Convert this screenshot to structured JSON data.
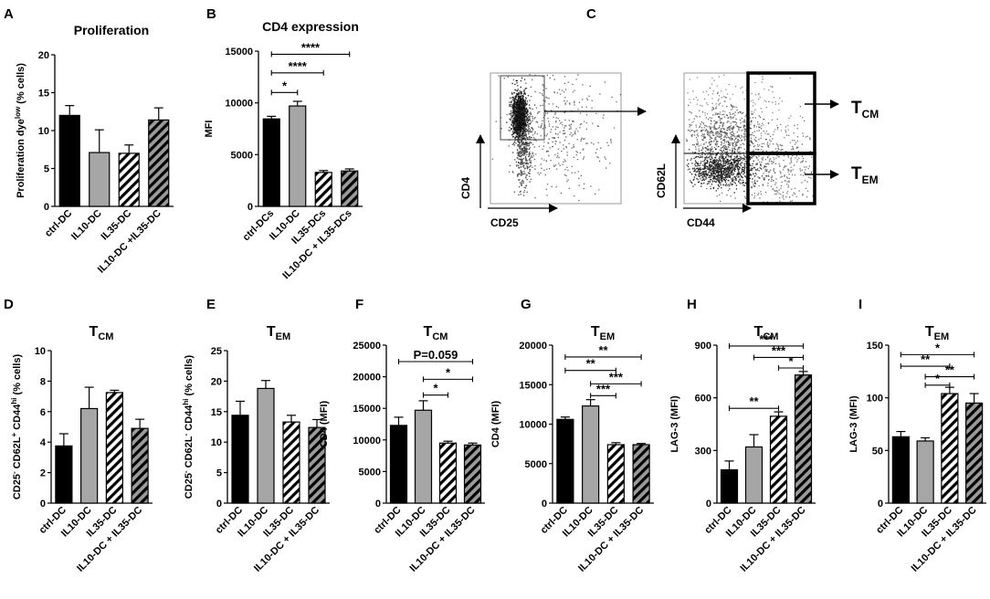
{
  "figure": {
    "panel_c": {
      "label": "C",
      "plot1": {
        "y_label": "CD4",
        "x_label": "CD25"
      },
      "plot2": {
        "y_label": "CD62L",
        "x_label": "CD44"
      },
      "tcm": {
        "main": "T",
        "sub": "CM"
      },
      "tem": {
        "main": "T",
        "sub": "EM"
      }
    }
  },
  "chart_data": [
    {
      "panel": "A",
      "type": "bar",
      "title": "Proliferation",
      "ylabel_main": "Proliferation dye",
      "ylabel_sup": "low",
      "ylabel_tail": " (% cells)",
      "categories": [
        "ctrl-DC",
        "IL10-DC",
        "IL35-DC",
        "IL10-DC +IL35-DC"
      ],
      "values": [
        12,
        7.1,
        7,
        11.4
      ],
      "errors": [
        1.3,
        3,
        1.1,
        1.6
      ],
      "fills": [
        "solid-black",
        "solid-gray",
        "hatch-white",
        "hatch-gray"
      ],
      "ylim": [
        0,
        20
      ],
      "yticks": [
        0,
        5,
        10,
        15,
        20
      ],
      "significance": []
    },
    {
      "panel": "B",
      "type": "bar",
      "title": "CD4 expression",
      "ylabel_main": "MFI",
      "categories": [
        "ctrl-DCs",
        "IL10-DC",
        "IL35-DCs",
        "IL10-DC + IL35-DCs"
      ],
      "values": [
        8450,
        9700,
        3280,
        3420
      ],
      "errors": [
        250,
        450,
        180,
        200
      ],
      "fills": [
        "solid-black",
        "solid-gray",
        "hatch-white",
        "hatch-gray"
      ],
      "ylim": [
        0,
        15000
      ],
      "yticks": [
        0,
        5000,
        10000,
        15000
      ],
      "significance": [
        {
          "from": 0,
          "to": 1,
          "level": 11000,
          "label": "*"
        },
        {
          "from": 0,
          "to": 2,
          "level": 12900,
          "label": "****"
        },
        {
          "from": 0,
          "to": 3,
          "level": 14700,
          "label": "****"
        }
      ]
    },
    {
      "panel": "D",
      "type": "bar",
      "title_main": "T",
      "title_sub": "CM",
      "ylabel_parts": [
        {
          "t": "CD25",
          "s": ""
        },
        {
          "t": "-",
          "s": "sup"
        },
        {
          "t": " CD62L",
          "s": ""
        },
        {
          "t": "+",
          "s": "sup"
        },
        {
          "t": " CD44",
          "s": ""
        },
        {
          "t": "hi",
          "s": "sup"
        },
        {
          "t": " (% cells)",
          "s": ""
        }
      ],
      "categories": [
        "ctrl-DC",
        "IL10-DC",
        "IL35-DC",
        "IL10-DC + IL35-DC"
      ],
      "values": [
        3.75,
        6.2,
        7.25,
        4.9
      ],
      "errors": [
        0.8,
        1.4,
        0.15,
        0.6
      ],
      "fills": [
        "solid-black",
        "solid-gray",
        "hatch-white",
        "hatch-gray"
      ],
      "ylim": [
        0,
        10
      ],
      "yticks": [
        0,
        2,
        4,
        6,
        8,
        10
      ],
      "significance": []
    },
    {
      "panel": "E",
      "type": "bar",
      "title_main": "T",
      "title_sub": "EM",
      "ylabel_parts": [
        {
          "t": "CD25",
          "s": ""
        },
        {
          "t": "-",
          "s": "sup"
        },
        {
          "t": " CD62L",
          "s": ""
        },
        {
          "t": "-",
          "s": "sup"
        },
        {
          "t": " CD44",
          "s": ""
        },
        {
          "t": "hi",
          "s": "sup"
        },
        {
          "t": " (% cells)",
          "s": ""
        }
      ],
      "categories": [
        "ctrl-DC",
        "IL10-DC",
        "IL35-DC",
        "IL10-DC + IL35-DC"
      ],
      "values": [
        14.4,
        18.8,
        13.3,
        12.4
      ],
      "errors": [
        2.3,
        1.3,
        1.1,
        1.3
      ],
      "fills": [
        "solid-black",
        "solid-gray",
        "hatch-white",
        "hatch-gray"
      ],
      "ylim": [
        0,
        25
      ],
      "yticks": [
        0,
        5,
        10,
        15,
        20,
        25
      ],
      "significance": []
    },
    {
      "panel": "F",
      "type": "bar",
      "title_main": "T",
      "title_sub": "CM",
      "ylabel_main": "CD4 (MFI)",
      "categories": [
        "ctrl-DC",
        "IL10-DC",
        "IL35-DC",
        "IL10-DC + IL35-DC"
      ],
      "values": [
        12300,
        14700,
        9500,
        9200
      ],
      "errors": [
        1300,
        1500,
        300,
        300
      ],
      "fills": [
        "solid-black",
        "solid-gray",
        "hatch-white",
        "hatch-gray"
      ],
      "ylim": [
        0,
        25000
      ],
      "yticks": [
        0,
        5000,
        10000,
        15000,
        20000,
        25000
      ],
      "significance": [
        {
          "from": 2,
          "to": 1,
          "level": 17100,
          "label": "*"
        },
        {
          "from": 3,
          "to": 1,
          "level": 19600,
          "label": "*"
        },
        {
          "from": 0,
          "to": 3,
          "level": 22400,
          "label": "P=0.059"
        }
      ]
    },
    {
      "panel": "G",
      "type": "bar",
      "title_main": "T",
      "title_sub": "EM",
      "ylabel_main": "CD4 (MFI)",
      "categories": [
        "ctrl-DC",
        "IL10-DC",
        "IL35-DC",
        "IL10-DC + IL35-DC"
      ],
      "values": [
        10600,
        12300,
        7400,
        7400
      ],
      "errors": [
        300,
        800,
        250,
        150
      ],
      "fills": [
        "solid-black",
        "solid-gray",
        "hatch-white",
        "hatch-gray"
      ],
      "ylim": [
        0,
        20000
      ],
      "yticks": [
        0,
        5000,
        10000,
        15000,
        20000
      ],
      "significance": [
        {
          "from": 1,
          "to": 2,
          "level": 13600,
          "label": "***"
        },
        {
          "from": 1,
          "to": 3,
          "level": 15100,
          "label": "***"
        },
        {
          "from": 0,
          "to": 2,
          "level": 16800,
          "label": "**"
        },
        {
          "from": 0,
          "to": 3,
          "level": 18500,
          "label": "**"
        }
      ]
    },
    {
      "panel": "H",
      "type": "bar",
      "title_main": "T",
      "title_sub": "CM",
      "ylabel_main": "LAG-3 (MFI)",
      "categories": [
        "ctrl-DC",
        "IL10-DC",
        "IL35-DC",
        "IL10-DC + IL35-DC"
      ],
      "values": [
        190,
        320,
        495,
        730
      ],
      "errors": [
        50,
        70,
        25,
        20
      ],
      "fills": [
        "solid-black",
        "solid-gray",
        "hatch-white",
        "hatch-gray"
      ],
      "ylim": [
        0,
        900
      ],
      "yticks": [
        0,
        300,
        600,
        900
      ],
      "significance": [
        {
          "from": 0,
          "to": 2,
          "level": 540,
          "label": "**"
        },
        {
          "from": 2,
          "to": 3,
          "level": 770,
          "label": "*"
        },
        {
          "from": 1,
          "to": 3,
          "level": 830,
          "label": "***"
        },
        {
          "from": 0,
          "to": 3,
          "level": 895,
          "label": "***"
        }
      ]
    },
    {
      "panel": "I",
      "type": "bar",
      "title_main": "T",
      "title_sub": "EM",
      "ylabel_main": "LAG-3 (MFI)",
      "categories": [
        "ctrl-DC",
        "IL10-DC",
        "IL35-DC",
        "IL10-DC + IL35-DC"
      ],
      "values": [
        63,
        59,
        104,
        95
      ],
      "errors": [
        5,
        3,
        6,
        9
      ],
      "fills": [
        "solid-black",
        "solid-gray",
        "hatch-white",
        "hatch-gray"
      ],
      "ylim": [
        0,
        150
      ],
      "yticks": [
        0,
        50,
        100,
        150
      ],
      "significance": [
        {
          "from": 1,
          "to": 2,
          "level": 112,
          "label": "*"
        },
        {
          "from": 1,
          "to": 3,
          "level": 120,
          "label": "**"
        },
        {
          "from": 0,
          "to": 2,
          "level": 130,
          "label": "**"
        },
        {
          "from": 0,
          "to": 3,
          "level": 141,
          "label": "*"
        }
      ]
    }
  ]
}
